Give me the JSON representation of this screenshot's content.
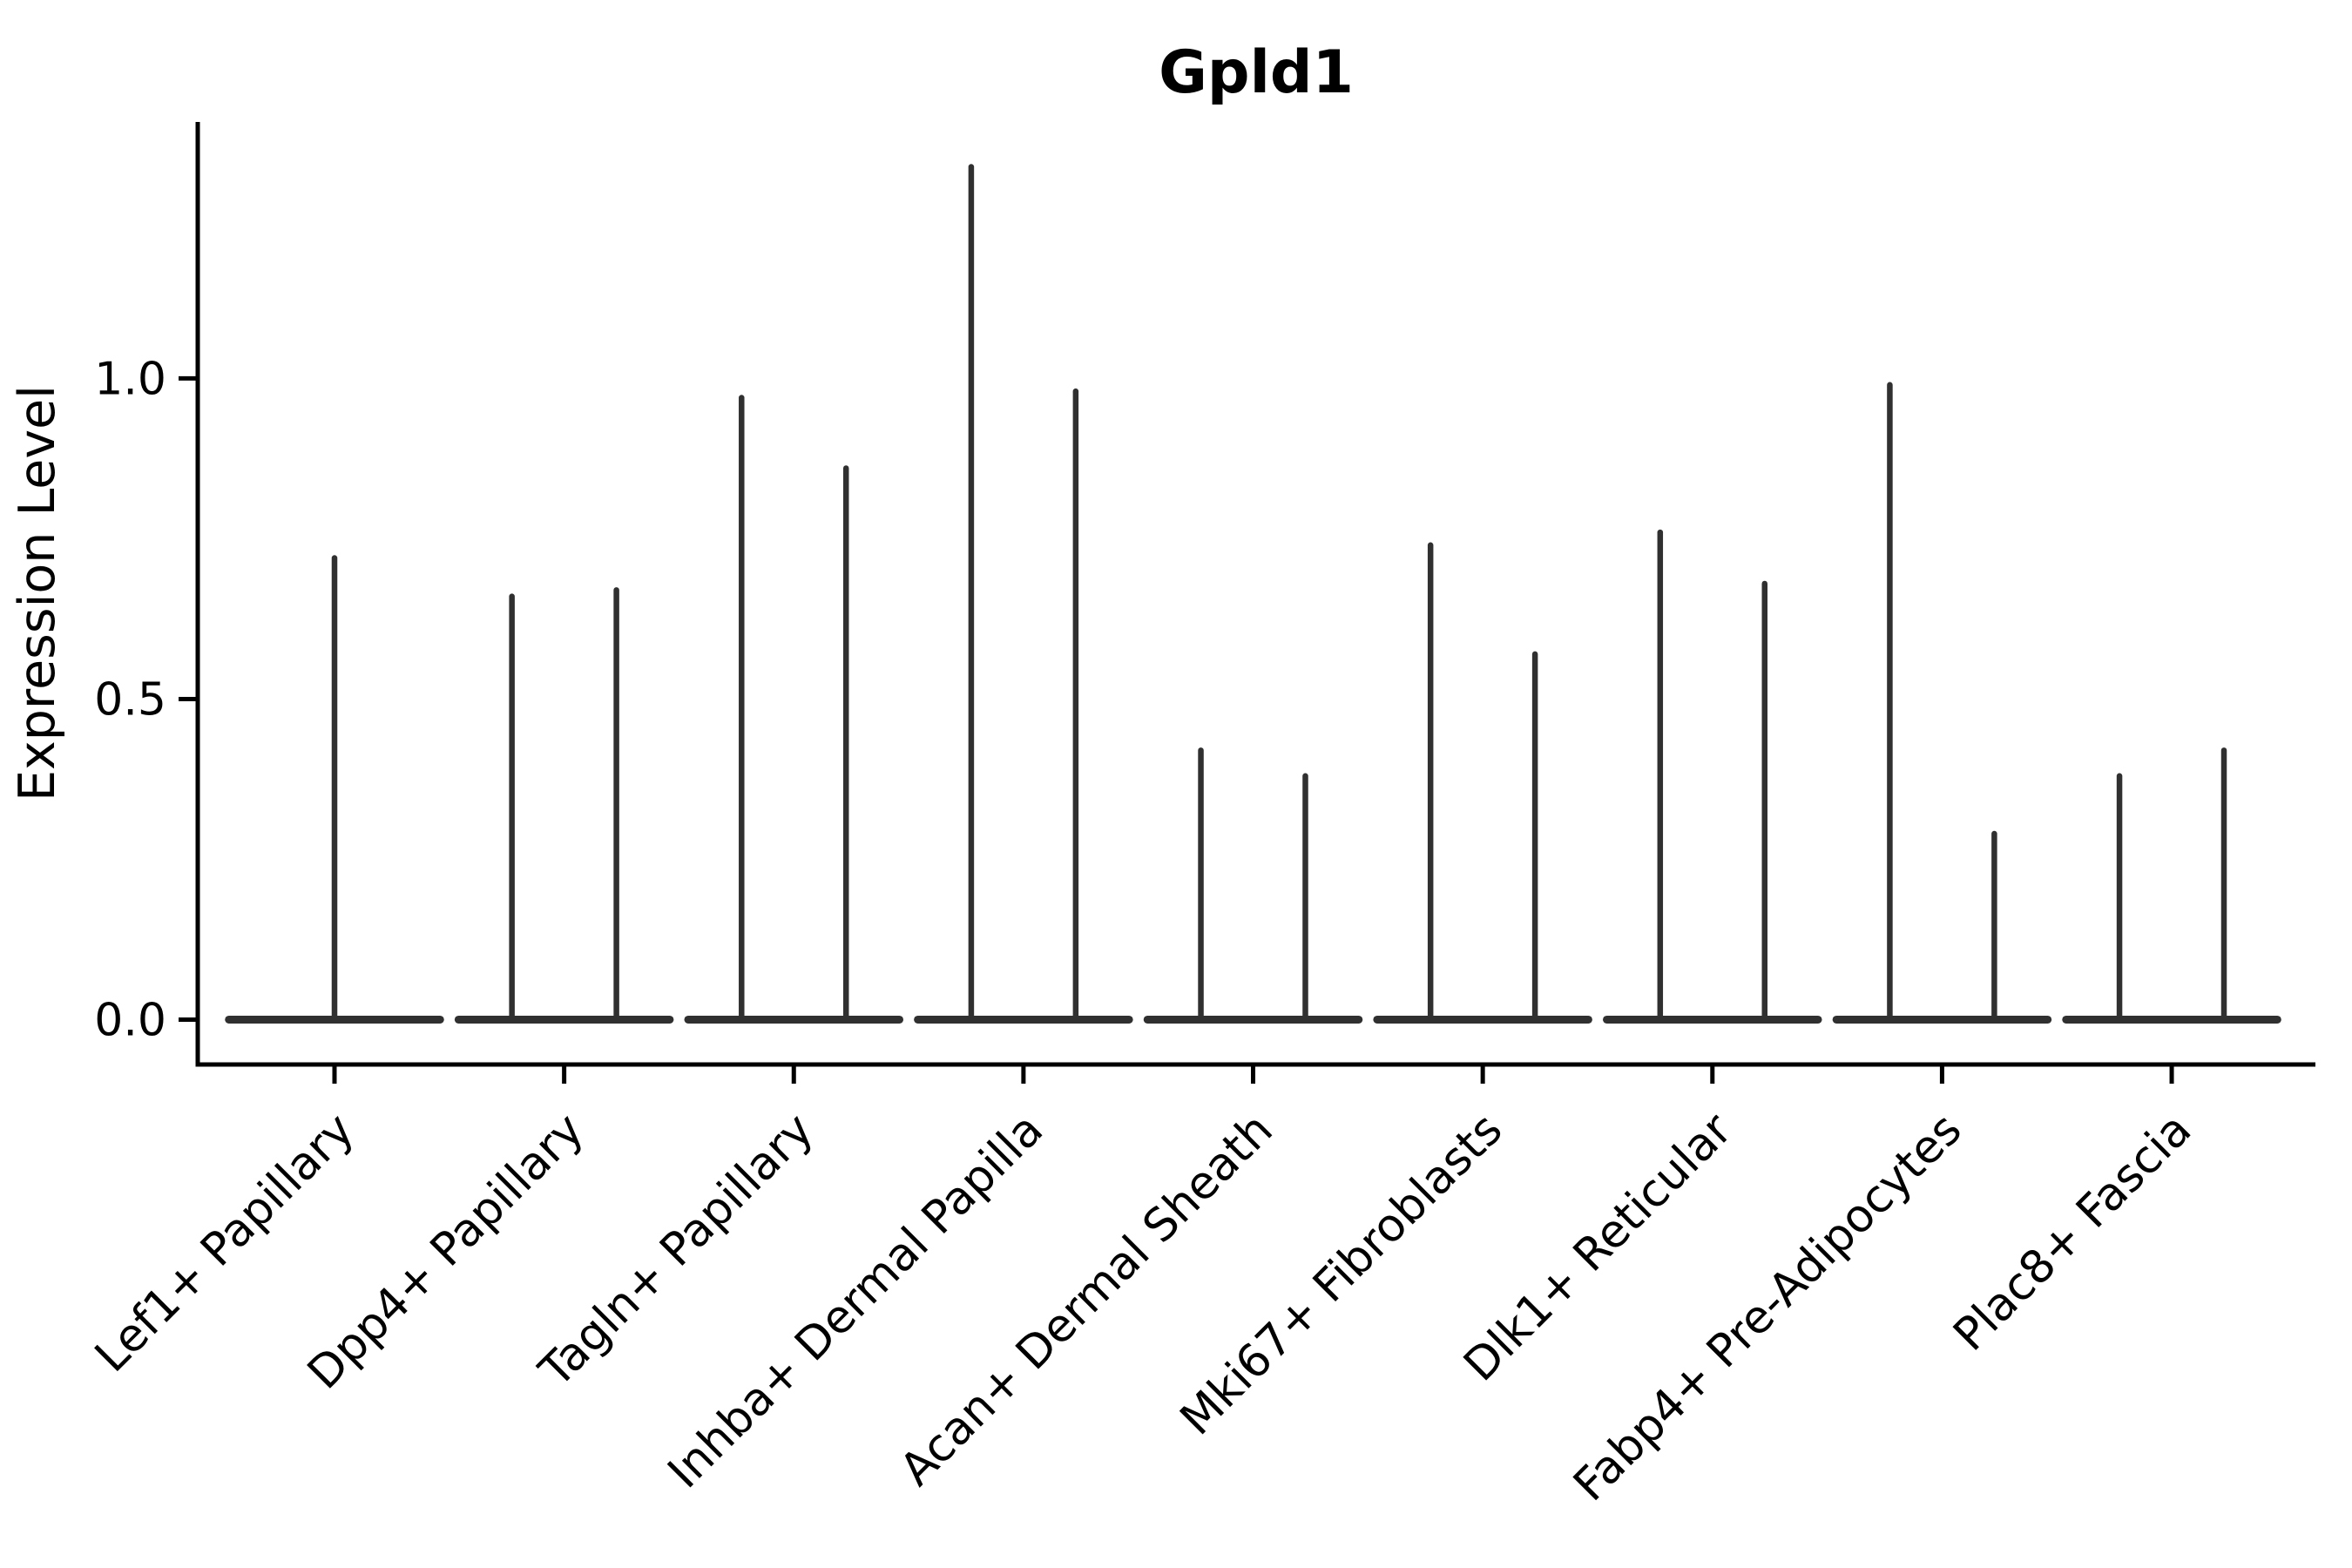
{
  "colors": {
    "background": "#ffffff",
    "axis": "#000000",
    "text": "#000000",
    "violin": "#303030"
  },
  "chart_data": {
    "type": "violin",
    "title": "Gpld1",
    "xlabel": "",
    "ylabel": "Expression Level",
    "ylim": [
      -0.07,
      1.4
    ],
    "yticks": [
      0.0,
      0.5,
      1.0
    ],
    "ytick_labels": [
      "0.0",
      "0.5",
      "1.0"
    ],
    "grid": "off",
    "legend": "none",
    "x_tick_rotation_deg": 45,
    "categories": [
      "Lef1+ Papillary",
      "Dpp4+ Papillary",
      "Tagln+ Papillary",
      "Inhba+ Dermal Papilla",
      "Acan+ Dermal Sheath",
      "Mki67+ Fibroblasts",
      "Dlk1+ Reticular",
      "Fabp4+ Pre-Adipocytes",
      "Plac8+ Fascia"
    ],
    "baseline_value": 0.0,
    "violins": [
      {
        "category": "Lef1+ Papillary",
        "base_width": 0.92,
        "peaks": [
          {
            "offset": 0.0,
            "max": 0.72,
            "width": 0.92
          }
        ]
      },
      {
        "category": "Dpp4+ Papillary",
        "base_width": 0.92,
        "peaks": [
          {
            "offset": -0.2275,
            "max": 0.66,
            "width": 0.46
          },
          {
            "offset": 0.2275,
            "max": 0.67,
            "width": 0.46
          }
        ]
      },
      {
        "category": "Tagln+ Papillary",
        "base_width": 0.92,
        "peaks": [
          {
            "offset": -0.2275,
            "max": 0.97,
            "width": 0.46
          },
          {
            "offset": 0.2275,
            "max": 0.86,
            "width": 0.46
          }
        ]
      },
      {
        "category": "Inhba+ Dermal Papilla",
        "base_width": 0.92,
        "peaks": [
          {
            "offset": -0.2275,
            "max": 1.33,
            "width": 0.46
          },
          {
            "offset": 0.2275,
            "max": 0.98,
            "width": 0.46
          }
        ]
      },
      {
        "category": "Acan+ Dermal Sheath",
        "base_width": 0.92,
        "peaks": [
          {
            "offset": -0.2275,
            "max": 0.42,
            "width": 0.46
          },
          {
            "offset": 0.2275,
            "max": 0.38,
            "width": 0.46
          }
        ]
      },
      {
        "category": "Mki67+ Fibroblasts",
        "base_width": 0.92,
        "peaks": [
          {
            "offset": -0.2275,
            "max": 0.74,
            "width": 0.46
          },
          {
            "offset": 0.2275,
            "max": 0.57,
            "width": 0.46
          }
        ]
      },
      {
        "category": "Dlk1+ Reticular",
        "base_width": 0.92,
        "peaks": [
          {
            "offset": -0.2275,
            "max": 0.76,
            "width": 0.46
          },
          {
            "offset": 0.2275,
            "max": 0.68,
            "width": 0.46
          }
        ]
      },
      {
        "category": "Fabp4+ Pre-Adipocytes",
        "base_width": 0.92,
        "peaks": [
          {
            "offset": -0.2275,
            "max": 0.99,
            "width": 0.46
          },
          {
            "offset": 0.2275,
            "max": 0.29,
            "width": 0.46
          }
        ]
      },
      {
        "category": "Plac8+ Fascia",
        "base_width": 0.92,
        "peaks": [
          {
            "offset": -0.2275,
            "max": 0.38,
            "width": 0.46
          },
          {
            "offset": 0.2275,
            "max": 0.42,
            "width": 0.46
          }
        ]
      }
    ]
  }
}
